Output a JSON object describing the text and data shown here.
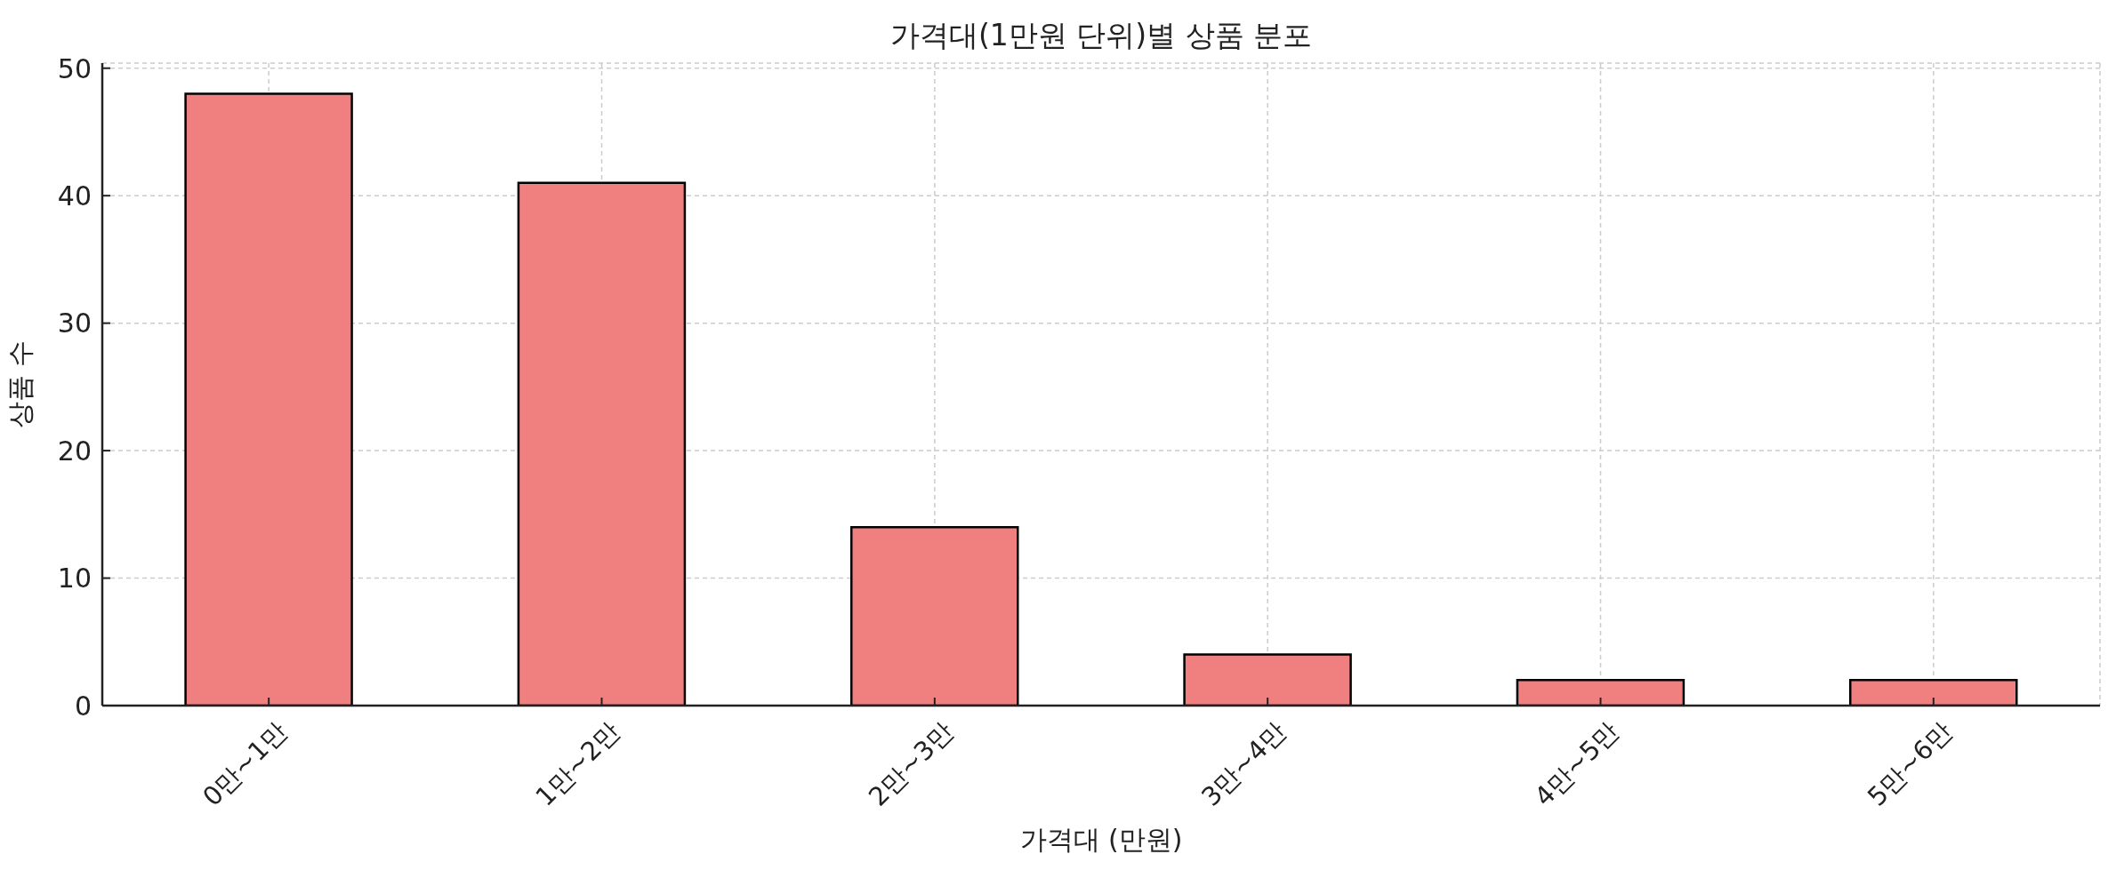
{
  "chart_data": {
    "type": "bar",
    "title": "가격대(1만원 단위)별 상품 분포",
    "xlabel": "가격대 (만원)",
    "ylabel": "상품 수",
    "categories": [
      "0만~1만",
      "1만~2만",
      "2만~3만",
      "3만~4만",
      "4만~5만",
      "5만~6만"
    ],
    "values": [
      48,
      41,
      14,
      4,
      2,
      2
    ],
    "color": "#f08080",
    "ylim": [
      0,
      50.4
    ],
    "yticks": [
      0,
      10,
      20,
      30,
      40,
      50
    ],
    "grid": true
  }
}
